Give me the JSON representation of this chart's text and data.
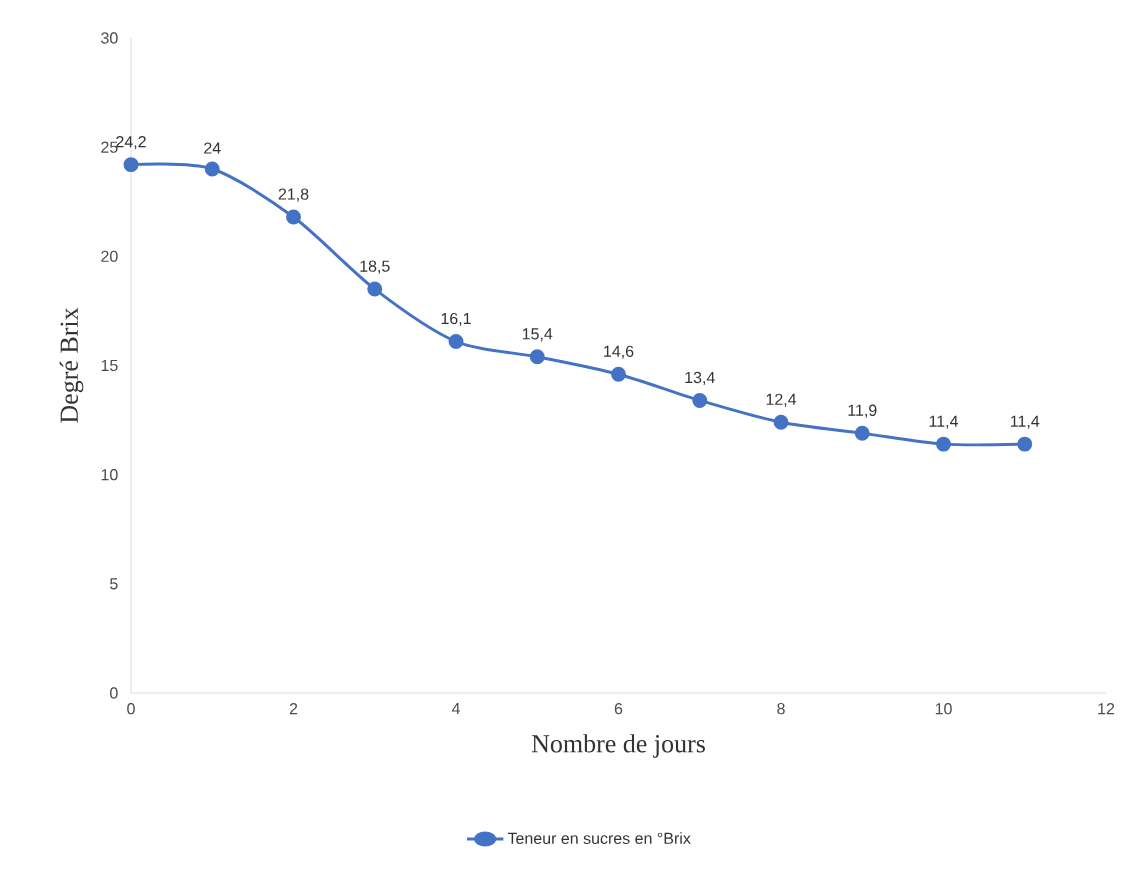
{
  "chart_data": {
    "type": "line",
    "xlabel": "Nombre de jours",
    "ylabel": "Degré Brix",
    "x": [
      0,
      1,
      2,
      3,
      4,
      5,
      6,
      7,
      8,
      9,
      10,
      11
    ],
    "series": [
      {
        "name": "Teneur en sucres en °Brix",
        "color": "#4472c4",
        "values": [
          24.2,
          24,
          21.8,
          18.5,
          16.1,
          15.4,
          14.6,
          13.4,
          12.4,
          11.9,
          11.4,
          11.4
        ],
        "value_labels": [
          "24,2",
          "24",
          "21,8",
          "18,5",
          "16,1",
          "15,4",
          "14,6",
          "13,4",
          "12,4",
          "11,9",
          "11,4",
          "11,4"
        ]
      }
    ],
    "xlim": [
      0,
      12
    ],
    "xticks": [
      0,
      2,
      4,
      6,
      8,
      10,
      12
    ],
    "ylim": [
      0,
      30
    ],
    "yticks": [
      0,
      5,
      10,
      15,
      20,
      25,
      30
    ],
    "grid": false,
    "legend": "bottom",
    "marker": "circle",
    "line_style": "solid"
  }
}
